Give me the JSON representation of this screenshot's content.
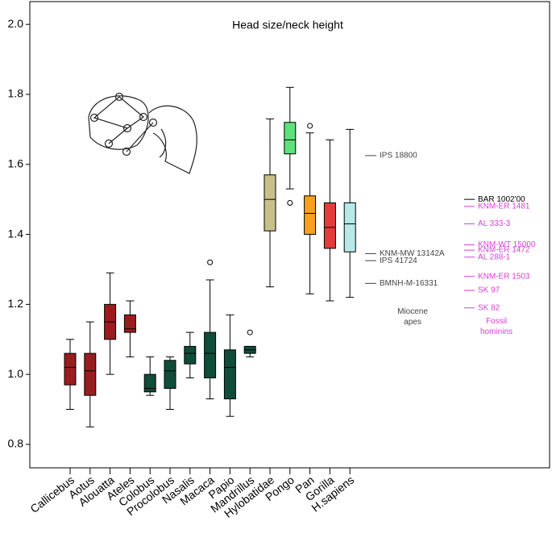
{
  "chart_data": {
    "type": "box",
    "title": "Head size/neck height",
    "categories": [
      "Callicebus",
      "Aotus",
      "Alouatta",
      "Ateles",
      "Colobus",
      "Procolobus",
      "Nasalis",
      "Macaca",
      "Papio",
      "Mandrillus",
      "Hylobatidae",
      "Pongo",
      "Pan",
      "Gorilla",
      "H.sapiens"
    ],
    "colors": [
      "#9b1c1f",
      "#9b1c1f",
      "#9b1c1f",
      "#9b1c1f",
      "#0f4d3a",
      "#0f4d3a",
      "#0f4d3a",
      "#0f4d3a",
      "#0f4d3a",
      "#0f4d3a",
      "#c8c08a",
      "#5fe07a",
      "#f5a020",
      "#e83a3a",
      "#b8e8e8"
    ],
    "boxes": [
      {
        "whislo": 0.9,
        "q1": 0.97,
        "med": 1.02,
        "q3": 1.06,
        "whishi": 1.1,
        "fliers": []
      },
      {
        "whislo": 0.85,
        "q1": 0.94,
        "med": 1.01,
        "q3": 1.06,
        "whishi": 1.15,
        "fliers": []
      },
      {
        "whislo": 1.0,
        "q1": 1.1,
        "med": 1.15,
        "q3": 1.2,
        "whishi": 1.29,
        "fliers": []
      },
      {
        "whislo": 1.05,
        "q1": 1.12,
        "med": 1.13,
        "q3": 1.17,
        "whishi": 1.21,
        "fliers": []
      },
      {
        "whislo": 0.94,
        "q1": 0.95,
        "med": 0.96,
        "q3": 1.0,
        "whishi": 1.05,
        "fliers": []
      },
      {
        "whislo": 0.9,
        "q1": 0.96,
        "med": 1.01,
        "q3": 1.04,
        "whishi": 1.05,
        "fliers": []
      },
      {
        "whislo": 0.99,
        "q1": 1.03,
        "med": 1.06,
        "q3": 1.08,
        "whishi": 1.12,
        "fliers": []
      },
      {
        "whislo": 0.93,
        "q1": 0.99,
        "med": 1.06,
        "q3": 1.12,
        "whishi": 1.27,
        "fliers": [
          1.32
        ]
      },
      {
        "whislo": 0.88,
        "q1": 0.93,
        "med": 1.02,
        "q3": 1.07,
        "whishi": 1.17,
        "fliers": []
      },
      {
        "whislo": 1.05,
        "q1": 1.06,
        "med": 1.07,
        "q3": 1.08,
        "whishi": 1.08,
        "fliers": [
          1.12
        ]
      },
      {
        "whislo": 1.25,
        "q1": 1.41,
        "med": 1.5,
        "q3": 1.57,
        "whishi": 1.73,
        "fliers": []
      },
      {
        "whislo": 1.53,
        "q1": 1.63,
        "med": 1.67,
        "q3": 1.72,
        "whishi": 1.82,
        "fliers": [
          1.49
        ]
      },
      {
        "whislo": 1.23,
        "q1": 1.4,
        "med": 1.46,
        "q3": 1.51,
        "whishi": 1.69,
        "fliers": [
          1.71
        ]
      },
      {
        "whislo": 1.21,
        "q1": 1.36,
        "med": 1.42,
        "q3": 1.49,
        "whishi": 1.67,
        "fliers": []
      },
      {
        "whislo": 1.22,
        "q1": 1.35,
        "med": 1.43,
        "q3": 1.49,
        "whishi": 1.7,
        "fliers": []
      }
    ],
    "ylim": [
      0.733,
      2.065
    ],
    "yticks": [
      0.8,
      {
        "value": 1,
        "label": "1.0"
      },
      1.2,
      1.4,
      1.6,
      1.8,
      {
        "value": 2,
        "label": "2.0"
      }
    ],
    "groups": [
      {
        "label": "Miocene apes",
        "color": "#444444",
        "points": [
          {
            "label": "IPS 18800",
            "value": 1.625
          },
          {
            "label": "KNM-MW 13142A",
            "value": 1.345
          },
          {
            "label": "IPS 41724",
            "value": 1.325
          },
          {
            "label": "BMNH-M-16331",
            "value": 1.26
          }
        ]
      },
      {
        "label": "Fossil hominins",
        "color": "#d63fd6",
        "points": [
          {
            "label": "BAR 1002'00",
            "value": 1.5,
            "color": "#000000"
          },
          {
            "label": "KNM-ER 1481",
            "value": 1.48
          },
          {
            "label": "AL 333-3",
            "value": 1.43
          },
          {
            "label": "KNM-WT 15000",
            "value": 1.37
          },
          {
            "label": "KNM-ER 1472",
            "value": 1.355
          },
          {
            "label": "AL 288-1",
            "value": 1.335
          },
          {
            "label": "KNM-ER 1503",
            "value": 1.28
          },
          {
            "label": "SK 97",
            "value": 1.24
          },
          {
            "label": "SK 82",
            "value": 1.19
          }
        ]
      }
    ]
  }
}
